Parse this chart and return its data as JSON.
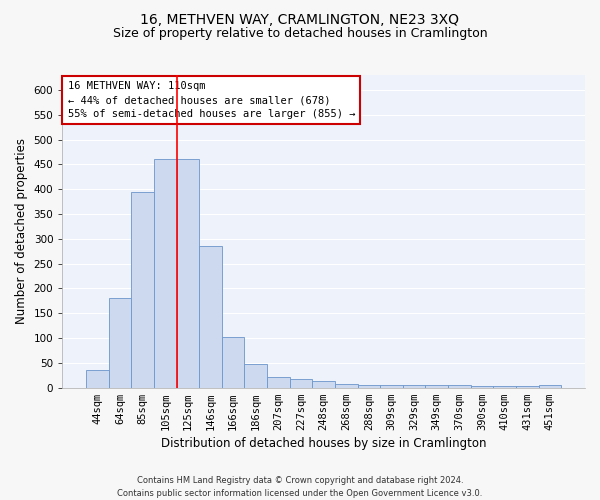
{
  "title": "16, METHVEN WAY, CRAMLINGTON, NE23 3XQ",
  "subtitle": "Size of property relative to detached houses in Cramlington",
  "xlabel": "Distribution of detached houses by size in Cramlington",
  "ylabel": "Number of detached properties",
  "footer_line1": "Contains HM Land Registry data © Crown copyright and database right 2024.",
  "footer_line2": "Contains public sector information licensed under the Open Government Licence v3.0.",
  "categories": [
    "44sqm",
    "64sqm",
    "85sqm",
    "105sqm",
    "125sqm",
    "146sqm",
    "166sqm",
    "186sqm",
    "207sqm",
    "227sqm",
    "248sqm",
    "268sqm",
    "288sqm",
    "309sqm",
    "329sqm",
    "349sqm",
    "370sqm",
    "390sqm",
    "410sqm",
    "431sqm",
    "451sqm"
  ],
  "values": [
    35,
    180,
    395,
    460,
    460,
    285,
    103,
    48,
    21,
    18,
    13,
    8,
    5,
    5,
    5,
    5,
    5,
    3,
    3,
    3,
    5
  ],
  "bar_color": "#ccd9ee",
  "bar_edge_color": "#6b96cc",
  "red_line_x": 3.5,
  "annotation_text_line1": "16 METHVEN WAY: 110sqm",
  "annotation_text_line2": "← 44% of detached houses are smaller (678)",
  "annotation_text_line3": "55% of semi-detached houses are larger (855) →",
  "annotation_box_color": "#ffffff",
  "annotation_box_edge": "#cc0000",
  "ylim": [
    0,
    630
  ],
  "yticks": [
    0,
    50,
    100,
    150,
    200,
    250,
    300,
    350,
    400,
    450,
    500,
    550,
    600
  ],
  "bg_color": "#edf2fb",
  "grid_color": "#ffffff",
  "fig_bg_color": "#f7f7f7",
  "title_fontsize": 10,
  "subtitle_fontsize": 9,
  "xlabel_fontsize": 8.5,
  "ylabel_fontsize": 8.5,
  "tick_fontsize": 7.5,
  "footer_fontsize": 6.0,
  "ann_fontsize": 7.5
}
